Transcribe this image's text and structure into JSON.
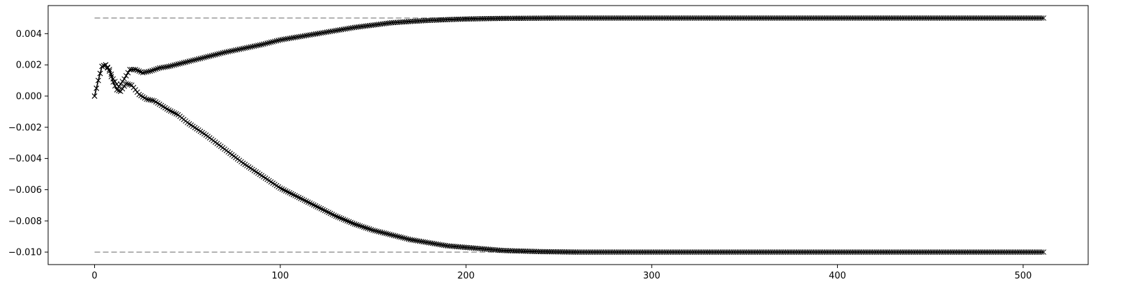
{
  "chart_data": {
    "type": "line",
    "title": "",
    "xlabel": "",
    "ylabel": "",
    "xlim": [
      -25,
      535
    ],
    "ylim": [
      -0.0108,
      0.0058
    ],
    "grid": false,
    "legend": "none",
    "x_ticks": [
      {
        "value": 0,
        "label": "0"
      },
      {
        "value": 100,
        "label": "100"
      },
      {
        "value": 200,
        "label": "200"
      },
      {
        "value": 300,
        "label": "300"
      },
      {
        "value": 400,
        "label": "400"
      },
      {
        "value": 500,
        "label": "500"
      }
    ],
    "y_ticks": [
      {
        "value": 0.004,
        "label": "0.004"
      },
      {
        "value": 0.002,
        "label": "0.002"
      },
      {
        "value": 0.0,
        "label": "0.000"
      },
      {
        "value": -0.002,
        "label": "−0.002"
      },
      {
        "value": -0.004,
        "label": "−0.004"
      },
      {
        "value": -0.006,
        "label": "−0.006"
      },
      {
        "value": -0.008,
        "label": "−0.008"
      },
      {
        "value": -0.01,
        "label": "−0.010"
      }
    ],
    "reference_lines": [
      {
        "y": 0.005,
        "x_start": 0,
        "x_end": 511,
        "color": "#999999",
        "style": "dashed"
      },
      {
        "y": -0.01,
        "x_start": 0,
        "x_end": 511,
        "color": "#999999",
        "style": "dashed"
      }
    ],
    "series": [
      {
        "color": "#000000",
        "marker": "x",
        "points": [
          [
            0,
            0.0
          ],
          [
            2,
            0.001
          ],
          [
            4,
            0.0019
          ],
          [
            6,
            0.002
          ],
          [
            8,
            0.0017
          ],
          [
            10,
            0.0011
          ],
          [
            13,
            0.0006
          ],
          [
            16,
            0.0011
          ],
          [
            19,
            0.0017
          ],
          [
            22,
            0.0017
          ],
          [
            26,
            0.0015
          ],
          [
            30,
            0.0016
          ],
          [
            35,
            0.0018
          ],
          [
            40,
            0.0019
          ],
          [
            50,
            0.0022
          ],
          [
            60,
            0.0025
          ],
          [
            70,
            0.0028
          ],
          [
            80,
            0.00305
          ],
          [
            90,
            0.0033
          ],
          [
            100,
            0.0036
          ],
          [
            110,
            0.0038
          ],
          [
            120,
            0.004
          ],
          [
            130,
            0.0042
          ],
          [
            140,
            0.0044
          ],
          [
            150,
            0.00455
          ],
          [
            160,
            0.0047
          ],
          [
            170,
            0.00478
          ],
          [
            180,
            0.00485
          ],
          [
            190,
            0.0049
          ],
          [
            200,
            0.00494
          ],
          [
            220,
            0.00498
          ],
          [
            250,
            0.005
          ],
          [
            300,
            0.005
          ],
          [
            400,
            0.005
          ],
          [
            511,
            0.005
          ]
        ]
      },
      {
        "color": "#000000",
        "marker": "x",
        "points": [
          [
            0,
            0.0
          ],
          [
            2,
            0.001
          ],
          [
            4,
            0.0019
          ],
          [
            6,
            0.002
          ],
          [
            8,
            0.0016
          ],
          [
            10,
            0.0009
          ],
          [
            12,
            0.0004
          ],
          [
            14,
            0.0003
          ],
          [
            17,
            0.0008
          ],
          [
            20,
            0.0007
          ],
          [
            24,
            0.0001
          ],
          [
            28,
            -0.0002
          ],
          [
            32,
            -0.0003
          ],
          [
            36,
            -0.0006
          ],
          [
            40,
            -0.0009
          ],
          [
            45,
            -0.0012
          ],
          [
            50,
            -0.0017
          ],
          [
            60,
            -0.0025
          ],
          [
            70,
            -0.0034
          ],
          [
            80,
            -0.0043
          ],
          [
            90,
            -0.0051
          ],
          [
            100,
            -0.0059
          ],
          [
            110,
            -0.0065
          ],
          [
            120,
            -0.0071
          ],
          [
            130,
            -0.0077
          ],
          [
            140,
            -0.0082
          ],
          [
            150,
            -0.0086
          ],
          [
            160,
            -0.0089
          ],
          [
            170,
            -0.0092
          ],
          [
            180,
            -0.0094
          ],
          [
            190,
            -0.0096
          ],
          [
            200,
            -0.0097
          ],
          [
            220,
            -0.0099
          ],
          [
            240,
            -0.00997
          ],
          [
            260,
            -0.01
          ],
          [
            300,
            -0.01
          ],
          [
            400,
            -0.01
          ],
          [
            511,
            -0.01
          ]
        ]
      }
    ]
  }
}
